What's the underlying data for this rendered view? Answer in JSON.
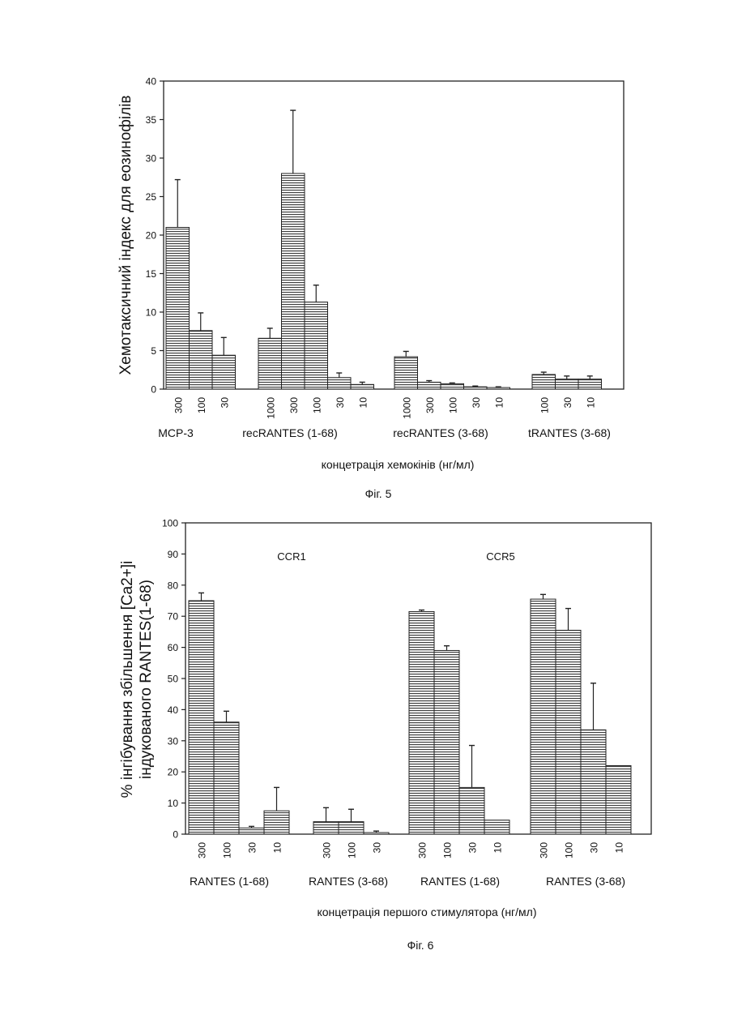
{
  "chart_data": [
    {
      "type": "bar",
      "caption": "Фіг. 5",
      "ylabel": "Хемотаксичний індекс для еозинофілів",
      "xlabel": "концетрація хемокінів (нг/мл)",
      "ylim": [
        0,
        40
      ],
      "yticks": [
        0,
        5,
        10,
        15,
        20,
        25,
        30,
        35,
        40
      ],
      "groups": [
        {
          "name": "MCP-3",
          "categories": [
            "300",
            "100",
            "30"
          ],
          "values": [
            21,
            7.6,
            4.4
          ],
          "errors": [
            6.2,
            2.3,
            2.3
          ]
        },
        {
          "name": "recRANTES (1-68)",
          "categories": [
            "1000",
            "300",
            "100",
            "30",
            "10"
          ],
          "values": [
            6.6,
            28,
            11.3,
            1.5,
            0.6
          ],
          "errors": [
            1.3,
            8.2,
            2.2,
            0.6,
            0.3
          ]
        },
        {
          "name": "recRANTES (3-68)",
          "categories": [
            "1000",
            "300",
            "100",
            "30",
            "10"
          ],
          "values": [
            4.2,
            0.9,
            0.7,
            0.3,
            0.2
          ],
          "errors": [
            0.7,
            0.2,
            0.1,
            0.1,
            0.1
          ]
        },
        {
          "name": "tRANTES (3-68)",
          "categories": [
            "100",
            "30",
            "10"
          ],
          "values": [
            1.9,
            1.3,
            1.3
          ],
          "errors": [
            0.3,
            0.4,
            0.4
          ]
        }
      ]
    },
    {
      "type": "bar",
      "caption": "Фіг. 6",
      "ylabel": [
        "% інгібування збільшення [Ca2+]i",
        "індукованого RANTES(1-68)"
      ],
      "xlabel": "концетрація першого стимулятора (нг/мл)",
      "ylim": [
        0,
        100
      ],
      "yticks": [
        0,
        10,
        20,
        30,
        40,
        50,
        60,
        70,
        80,
        90,
        100
      ],
      "annotations": [
        "CCR1",
        "CCR5"
      ],
      "groups": [
        {
          "name": "RANTES (1-68)",
          "receptor": "CCR1",
          "categories": [
            "300",
            "100",
            "30",
            "10"
          ],
          "values": [
            75,
            36,
            2,
            7.5
          ],
          "errors": [
            2.5,
            3.5,
            0.5,
            7.5
          ]
        },
        {
          "name": "RANTES (3-68)",
          "receptor": "CCR1",
          "categories": [
            "300",
            "100",
            "30"
          ],
          "values": [
            4,
            4,
            0.5
          ],
          "errors": [
            4.5,
            4,
            0.5
          ]
        },
        {
          "name": "RANTES (1-68)",
          "receptor": "CCR5",
          "categories": [
            "300",
            "100",
            "30",
            "10"
          ],
          "values": [
            71.5,
            59,
            15,
            4.5
          ],
          "errors": [
            0.5,
            1.5,
            13.5,
            0
          ]
        },
        {
          "name": "RANTES (3-68)",
          "receptor": "CCR5",
          "categories": [
            "300",
            "100",
            "30",
            "10"
          ],
          "values": [
            75.5,
            65.5,
            33.5,
            22
          ],
          "errors": [
            1.5,
            7,
            15,
            0
          ]
        }
      ]
    }
  ]
}
